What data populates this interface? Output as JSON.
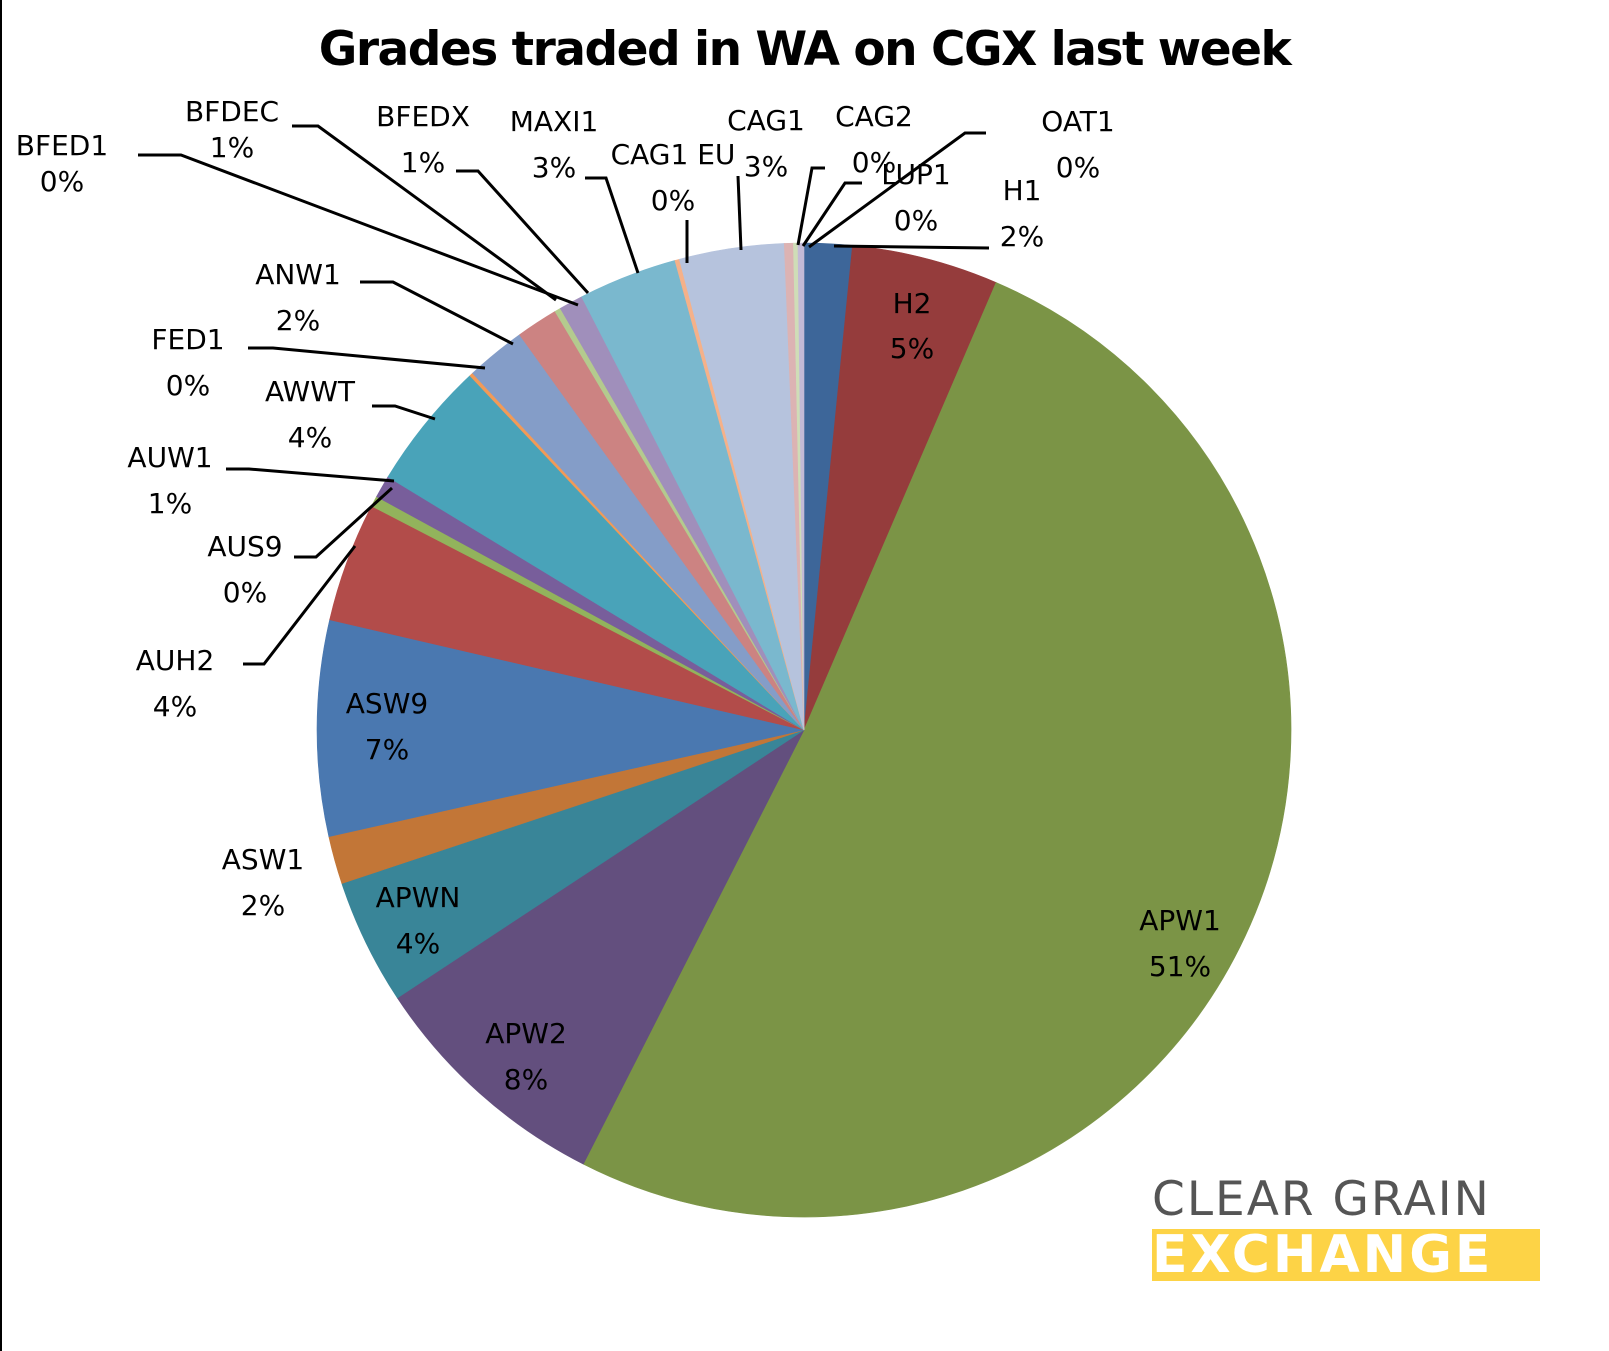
{
  "chart_data": {
    "type": "pie",
    "title": "Grades traded in WA on CGX last week",
    "start_angle_deg": 0,
    "direction": "clockwise",
    "label_format": "{name}\n{pct}",
    "slices": [
      {
        "name": "H1",
        "pct_label": "2%",
        "value": 1.6,
        "color": "#3d6699"
      },
      {
        "name": "H2",
        "pct_label": "5%",
        "value": 4.9,
        "color": "#953c3c"
      },
      {
        "name": "APW1",
        "pct_label": "51%",
        "value": 51.4,
        "color": "#7b9446"
      },
      {
        "name": "APW2",
        "pct_label": "8%",
        "value": 8.3,
        "color": "#634f7e"
      },
      {
        "name": "APWN",
        "pct_label": "4%",
        "value": 4.2,
        "color": "#398598"
      },
      {
        "name": "ASW1",
        "pct_label": "2%",
        "value": 1.6,
        "color": "#c27637"
      },
      {
        "name": "ASW9",
        "pct_label": "7%",
        "value": 7.2,
        "color": "#4a78b0"
      },
      {
        "name": "AUH2",
        "pct_label": "4%",
        "value": 4.0,
        "color": "#b24c4a"
      },
      {
        "name": "AUS9",
        "pct_label": "0%",
        "value": 0.35,
        "color": "#92b35c"
      },
      {
        "name": "AUW1",
        "pct_label": "1%",
        "value": 0.75,
        "color": "#785e9b"
      },
      {
        "name": "AWWT",
        "pct_label": "4%",
        "value": 4.3,
        "color": "#49a3b9"
      },
      {
        "name": "FED1",
        "pct_label": "0%",
        "value": 0.12,
        "color": "#f29a57"
      },
      {
        "name": "ANW1",
        "pct_label": "2%",
        "value": 2.0,
        "color": "#849dc8"
      },
      {
        "name": "BFDEC",
        "pct_label": "1%",
        "value": 1.4,
        "color": "#cc8382"
      },
      {
        "name": "BFED1",
        "pct_label": "0%",
        "value": 0.2,
        "color": "#b4ca8e"
      },
      {
        "name": "BFEDX",
        "pct_label": "1%",
        "value": 0.8,
        "color": "#a08fbb"
      },
      {
        "name": "MAXI1",
        "pct_label": "3%",
        "value": 3.3,
        "color": "#7ab8ce"
      },
      {
        "name": "CAG1 EU",
        "pct_label": "0%",
        "value": 0.15,
        "color": "#f5b189"
      },
      {
        "name": "CAG1",
        "pct_label": "3%",
        "value": 3.5,
        "color": "#b6c3dd"
      },
      {
        "name": "CAG2",
        "pct_label": "0%",
        "value": 0.3,
        "color": "#dcb3b3"
      },
      {
        "name": "LUP1",
        "pct_label": "0%",
        "value": 0.15,
        "color": "#cfddb7"
      },
      {
        "name": "OAT1",
        "pct_label": "0%",
        "value": 0.2,
        "color": "#c3bad6"
      }
    ]
  },
  "labels": {
    "H1": {
      "name": "H1",
      "pct": "2%"
    },
    "H2": {
      "name": "H2",
      "pct": "5%"
    },
    "APW1": {
      "name": "APW1",
      "pct": "51%"
    },
    "APW2": {
      "name": "APW2",
      "pct": "8%"
    },
    "APWN": {
      "name": "APWN",
      "pct": "4%"
    },
    "ASW1": {
      "name": "ASW1",
      "pct": "2%"
    },
    "ASW9": {
      "name": "ASW9",
      "pct": "7%"
    },
    "AUH2": {
      "name": "AUH2",
      "pct": "4%"
    },
    "AUS9": {
      "name": "AUS9",
      "pct": "0%"
    },
    "AUW1": {
      "name": "AUW1",
      "pct": "1%"
    },
    "AWWT": {
      "name": "AWWT",
      "pct": "4%"
    },
    "FED1": {
      "name": "FED1",
      "pct": "0%"
    },
    "ANW1": {
      "name": "ANW1",
      "pct": "2%"
    },
    "BFDEC": {
      "name": "BFDEC",
      "pct": "1%"
    },
    "BFED1": {
      "name": "BFED1",
      "pct": "0%"
    },
    "BFEDX": {
      "name": "BFEDX",
      "pct": "1%"
    },
    "MAXI1": {
      "name": "MAXI1",
      "pct": "3%"
    },
    "CAG1EU": {
      "name": "CAG1 EU",
      "pct": "0%"
    },
    "CAG1": {
      "name": "CAG1",
      "pct": "3%"
    },
    "CAG2": {
      "name": "CAG2",
      "pct": "0%"
    },
    "LUP1": {
      "name": "LUP1",
      "pct": "0%"
    },
    "OAT1": {
      "name": "OAT1",
      "pct": "0%"
    }
  },
  "logo": {
    "line1": "CLEAR GRAIN",
    "line2": "EXCHANGE",
    "text_color": "#555555",
    "band_color": "#fdd346"
  }
}
